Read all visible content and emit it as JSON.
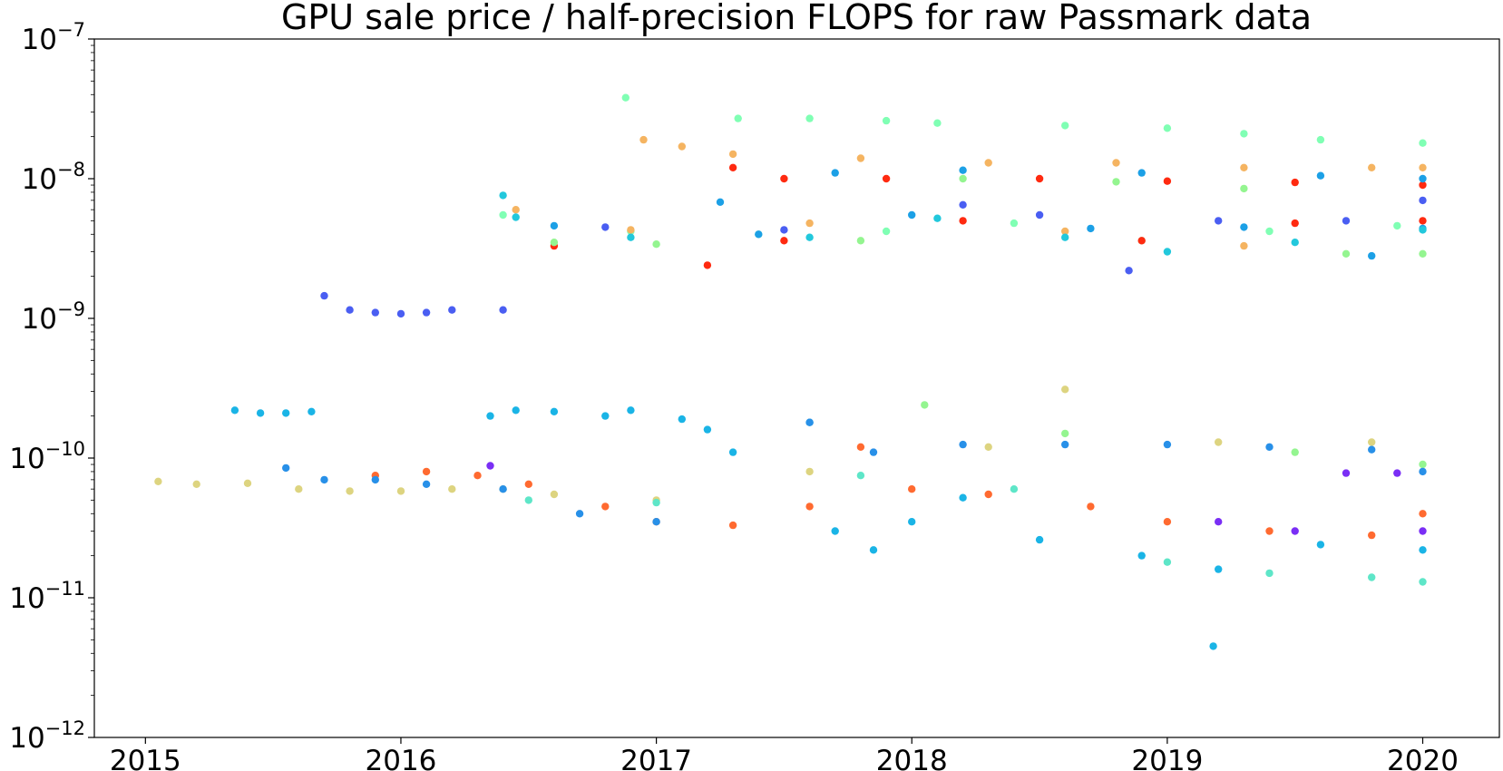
{
  "chart_data": {
    "type": "scatter",
    "title": "GPU sale price / half-precision FLOPS for raw Passmark data",
    "xlabel": "",
    "ylabel": "",
    "xscale": "linear (dates)",
    "yscale": "log",
    "xlim": [
      2014.8,
      2020.3
    ],
    "ylim": [
      1e-12,
      1e-07
    ],
    "grid": false,
    "legend": "none",
    "x_ticks": [
      {
        "value": 2015,
        "label": "2015"
      },
      {
        "value": 2016,
        "label": "2016"
      },
      {
        "value": 2017,
        "label": "2017"
      },
      {
        "value": 2018,
        "label": "2018"
      },
      {
        "value": 2019,
        "label": "2019"
      },
      {
        "value": 2020,
        "label": "2020"
      }
    ],
    "y_ticks": [
      {
        "value": 1e-07,
        "base": "10",
        "exp": "−7"
      },
      {
        "value": 1e-08,
        "base": "10",
        "exp": "−8"
      },
      {
        "value": 1e-09,
        "base": "10",
        "exp": "−9"
      },
      {
        "value": 1e-10,
        "base": "10",
        "exp": "−10"
      },
      {
        "value": 1e-11,
        "base": "10",
        "exp": "−11"
      },
      {
        "value": 1e-12,
        "base": "10",
        "exp": "−12"
      }
    ],
    "series": [
      {
        "color": "#80ffb4",
        "points": [
          [
            2016.88,
            3.8e-08
          ],
          [
            2017.32,
            2.7e-08
          ],
          [
            2017.6,
            2.7e-08
          ],
          [
            2017.9,
            2.6e-08
          ],
          [
            2018.1,
            2.5e-08
          ],
          [
            2018.6,
            2.4e-08
          ],
          [
            2019.0,
            2.3e-08
          ],
          [
            2019.3,
            2.1e-08
          ],
          [
            2019.6,
            1.9e-08
          ],
          [
            2020.0,
            1.8e-08
          ],
          [
            2016.4,
            5.5e-09
          ],
          [
            2016.9,
            4.2e-09
          ],
          [
            2017.4,
            4e-09
          ],
          [
            2017.9,
            4.2e-09
          ],
          [
            2018.4,
            4.8e-09
          ],
          [
            2018.9,
            3.6e-09
          ],
          [
            2019.4,
            4.2e-09
          ],
          [
            2019.9,
            4.6e-09
          ]
        ]
      },
      {
        "color": "#f5b461",
        "points": [
          [
            2016.95,
            1.9e-08
          ],
          [
            2017.1,
            1.7e-08
          ],
          [
            2017.3,
            1.5e-08
          ],
          [
            2017.8,
            1.4e-08
          ],
          [
            2018.3,
            1.3e-08
          ],
          [
            2018.8,
            1.3e-08
          ],
          [
            2019.3,
            1.2e-08
          ],
          [
            2019.8,
            1.2e-08
          ],
          [
            2020.0,
            1.2e-08
          ],
          [
            2016.45,
            6e-09
          ],
          [
            2016.9,
            4.3e-09
          ],
          [
            2017.6,
            4.8e-09
          ],
          [
            2018.6,
            4.2e-09
          ],
          [
            2019.3,
            3.3e-09
          ]
        ]
      },
      {
        "color": "#ff2a10",
        "points": [
          [
            2017.3,
            1.2e-08
          ],
          [
            2017.5,
            1e-08
          ],
          [
            2017.9,
            1e-08
          ],
          [
            2018.5,
            1e-08
          ],
          [
            2019.0,
            9.6e-09
          ],
          [
            2019.5,
            9.4e-09
          ],
          [
            2020.0,
            9e-09
          ],
          [
            2016.6,
            3.3e-09
          ],
          [
            2017.2,
            2.4e-09
          ],
          [
            2017.5,
            3.6e-09
          ],
          [
            2018.2,
            5e-09
          ],
          [
            2018.9,
            3.6e-09
          ],
          [
            2019.5,
            4.8e-09
          ],
          [
            2020.0,
            5e-09
          ]
        ]
      },
      {
        "color": "#1ca0e6",
        "points": [
          [
            2017.25,
            6.8e-09
          ],
          [
            2017.7,
            1.1e-08
          ],
          [
            2018.2,
            1.15e-08
          ],
          [
            2018.9,
            1.1e-08
          ],
          [
            2019.6,
            1.05e-08
          ],
          [
            2020.0,
            1e-08
          ],
          [
            2016.6,
            4.6e-09
          ],
          [
            2017.4,
            4e-09
          ],
          [
            2018.0,
            5.5e-09
          ],
          [
            2018.7,
            4.4e-09
          ],
          [
            2019.3,
            4.5e-09
          ],
          [
            2019.8,
            2.8e-09
          ],
          [
            2020.0,
            4.4e-09
          ]
        ]
      },
      {
        "color": "#4a5ef2",
        "points": [
          [
            2015.7,
            1.45e-09
          ],
          [
            2015.8,
            1.15e-09
          ],
          [
            2015.9,
            1.1e-09
          ],
          [
            2016.0,
            1.08e-09
          ],
          [
            2016.1,
            1.1e-09
          ],
          [
            2016.2,
            1.15e-09
          ],
          [
            2016.4,
            1.15e-09
          ],
          [
            2016.8,
            4.5e-09
          ],
          [
            2017.5,
            4.3e-09
          ],
          [
            2018.2,
            6.5e-09
          ],
          [
            2018.5,
            5.5e-09
          ],
          [
            2018.85,
            2.2e-09
          ],
          [
            2019.2,
            5e-09
          ],
          [
            2019.7,
            5e-09
          ],
          [
            2020.0,
            7e-09
          ]
        ]
      },
      {
        "color": "#22c8dc",
        "points": [
          [
            2016.4,
            7.6e-09
          ],
          [
            2016.45,
            5.3e-09
          ],
          [
            2016.9,
            3.8e-09
          ],
          [
            2017.6,
            3.8e-09
          ],
          [
            2018.1,
            5.2e-09
          ],
          [
            2018.6,
            3.8e-09
          ],
          [
            2019.0,
            3e-09
          ],
          [
            2019.5,
            3.5e-09
          ],
          [
            2020.0,
            4.3e-09
          ]
        ]
      },
      {
        "color": "#94f590",
        "points": [
          [
            2016.6,
            3.5e-09
          ],
          [
            2017.0,
            3.4e-09
          ],
          [
            2017.8,
            3.6e-09
          ],
          [
            2018.2,
            1e-08
          ],
          [
            2018.8,
            9.5e-09
          ],
          [
            2019.3,
            8.5e-09
          ],
          [
            2019.7,
            2.9e-09
          ],
          [
            2020.0,
            2.9e-09
          ],
          [
            2018.05,
            2.4e-10
          ],
          [
            2018.6,
            1.5e-10
          ],
          [
            2019.5,
            1.1e-10
          ],
          [
            2020.0,
            9e-11
          ]
        ]
      },
      {
        "color": "#1ab4e6",
        "points": [
          [
            2015.35,
            2.2e-10
          ],
          [
            2015.45,
            2.1e-10
          ],
          [
            2015.55,
            2.1e-10
          ],
          [
            2015.65,
            2.15e-10
          ],
          [
            2016.35,
            2e-10
          ],
          [
            2016.45,
            2.2e-10
          ],
          [
            2016.6,
            2.15e-10
          ],
          [
            2016.8,
            2e-10
          ],
          [
            2016.9,
            2.2e-10
          ],
          [
            2017.1,
            1.9e-10
          ],
          [
            2017.2,
            1.6e-10
          ],
          [
            2017.3,
            1.1e-10
          ],
          [
            2017.6,
            1.8e-10
          ],
          [
            2017.7,
            3e-11
          ],
          [
            2017.85,
            2.2e-11
          ],
          [
            2018.0,
            3.5e-11
          ],
          [
            2018.2,
            5.2e-11
          ],
          [
            2018.5,
            2.6e-11
          ],
          [
            2018.9,
            2e-11
          ],
          [
            2019.2,
            1.6e-11
          ],
          [
            2019.6,
            2.4e-11
          ],
          [
            2020.0,
            2.2e-11
          ],
          [
            2019.18,
            4.5e-12
          ]
        ]
      },
      {
        "color": "#ddd480",
        "points": [
          [
            2015.05,
            6.8e-11
          ],
          [
            2015.2,
            6.5e-11
          ],
          [
            2015.4,
            6.6e-11
          ],
          [
            2015.6,
            6e-11
          ],
          [
            2015.8,
            5.8e-11
          ],
          [
            2016.0,
            5.8e-11
          ],
          [
            2016.2,
            6e-11
          ],
          [
            2016.4,
            6e-11
          ],
          [
            2016.6,
            5.5e-11
          ],
          [
            2017.0,
            5e-11
          ],
          [
            2017.6,
            8e-11
          ],
          [
            2018.3,
            1.2e-10
          ],
          [
            2018.6,
            3.1e-10
          ],
          [
            2019.2,
            1.3e-10
          ],
          [
            2019.8,
            1.3e-10
          ]
        ]
      },
      {
        "color": "#ff6a30",
        "points": [
          [
            2015.9,
            7.5e-11
          ],
          [
            2016.1,
            8e-11
          ],
          [
            2016.3,
            7.5e-11
          ],
          [
            2016.5,
            6.5e-11
          ],
          [
            2016.8,
            4.5e-11
          ],
          [
            2017.0,
            3.5e-11
          ],
          [
            2017.3,
            3.3e-11
          ],
          [
            2017.6,
            4.5e-11
          ],
          [
            2017.8,
            1.2e-10
          ],
          [
            2018.0,
            6e-11
          ],
          [
            2018.3,
            5.5e-11
          ],
          [
            2018.7,
            4.5e-11
          ],
          [
            2019.0,
            3.5e-11
          ],
          [
            2019.4,
            3e-11
          ],
          [
            2019.8,
            2.8e-11
          ],
          [
            2020.0,
            4e-11
          ]
        ]
      },
      {
        "color": "#2890e8",
        "points": [
          [
            2015.55,
            8.5e-11
          ],
          [
            2015.7,
            7e-11
          ],
          [
            2015.9,
            7e-11
          ],
          [
            2016.1,
            6.5e-11
          ],
          [
            2016.4,
            6e-11
          ],
          [
            2016.7,
            4e-11
          ],
          [
            2017.0,
            3.5e-11
          ],
          [
            2017.6,
            1.8e-10
          ],
          [
            2017.85,
            1.1e-10
          ],
          [
            2018.2,
            1.25e-10
          ],
          [
            2018.6,
            1.25e-10
          ],
          [
            2019.0,
            1.25e-10
          ],
          [
            2019.4,
            1.2e-10
          ],
          [
            2019.8,
            1.15e-10
          ],
          [
            2020.0,
            8e-11
          ]
        ]
      },
      {
        "color": "#5ee6c8",
        "points": [
          [
            2016.5,
            5e-11
          ],
          [
            2017.0,
            4.8e-11
          ],
          [
            2017.8,
            7.5e-11
          ],
          [
            2018.4,
            6e-11
          ],
          [
            2019.0,
            1.8e-11
          ],
          [
            2019.4,
            1.5e-11
          ],
          [
            2019.8,
            1.4e-11
          ],
          [
            2020.0,
            1.3e-11
          ]
        ]
      },
      {
        "color": "#7a2ef5",
        "points": [
          [
            2016.35,
            8.8e-11
          ],
          [
            2019.2,
            3.5e-11
          ],
          [
            2019.5,
            3e-11
          ],
          [
            2019.7,
            7.8e-11
          ],
          [
            2019.9,
            7.8e-11
          ],
          [
            2020.0,
            3e-11
          ]
        ]
      }
    ]
  }
}
